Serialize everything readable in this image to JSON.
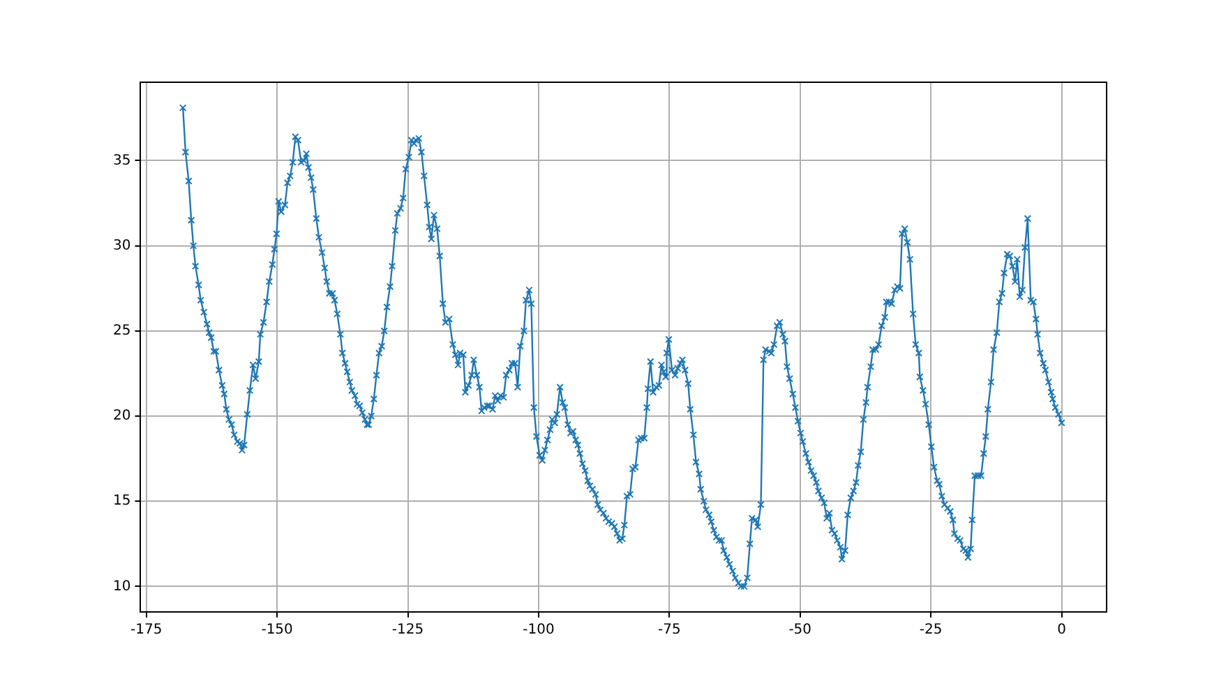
{
  "chart_data": {
    "type": "line",
    "marker": "cross",
    "line_style": "solid",
    "grid": true,
    "legend": false,
    "xlim": [
      -176.1,
      8.6
    ],
    "ylim": [
      8.5,
      39.6
    ],
    "xticks": [
      -175,
      -150,
      -125,
      -100,
      -75,
      -50,
      -25,
      0
    ],
    "yticks": [
      10,
      15,
      20,
      25,
      30,
      35
    ],
    "x": [
      -168.0,
      -167.5,
      -166.9,
      -166.4,
      -166.0,
      -165.6,
      -165.0,
      -164.6,
      -164.0,
      -163.4,
      -163.0,
      -162.6,
      -162.1,
      -161.7,
      -161.1,
      -160.5,
      -160.1,
      -159.7,
      -159.2,
      -158.7,
      -158.2,
      -157.6,
      -157.1,
      -156.7,
      -156.3,
      -155.7,
      -155.2,
      -154.6,
      -154.1,
      -153.5,
      -153.2,
      -152.6,
      -152.0,
      -151.5,
      -150.9,
      -150.5,
      -150.1,
      -149.7,
      -149.2,
      -148.5,
      -148.0,
      -147.5,
      -147.0,
      -146.5,
      -146.0,
      -145.4,
      -144.9,
      -144.4,
      -144.0,
      -143.5,
      -143.1,
      -142.5,
      -142.0,
      -141.4,
      -140.9,
      -140.5,
      -140.0,
      -139.4,
      -139.0,
      -138.5,
      -137.9,
      -137.5,
      -137.0,
      -136.6,
      -136.1,
      -135.7,
      -135.1,
      -134.7,
      -134.2,
      -133.7,
      -133.2,
      -132.8,
      -132.5,
      -132.0,
      -131.5,
      -131.0,
      -130.5,
      -130.0,
      -129.5,
      -129.0,
      -128.4,
      -128.0,
      -127.4,
      -127.0,
      -126.4,
      -125.9,
      -125.4,
      -124.8,
      -124.3,
      -123.8,
      -123.5,
      -122.9,
      -122.4,
      -121.9,
      -121.3,
      -120.9,
      -120.5,
      -120.0,
      -119.4,
      -118.9,
      -118.3,
      -117.8,
      -117.1,
      -116.4,
      -115.9,
      -115.4,
      -115.0,
      -114.4,
      -114.0,
      -113.4,
      -112.8,
      -112.4,
      -111.8,
      -111.3,
      -110.9,
      -110.4,
      -109.8,
      -109.4,
      -108.8,
      -108.3,
      -107.8,
      -107.3,
      -106.7,
      -106.2,
      -105.6,
      -105.1,
      -104.5,
      -104.0,
      -103.5,
      -102.8,
      -102.4,
      -101.8,
      -101.4,
      -100.9,
      -100.4,
      -99.8,
      -99.3,
      -98.8,
      -98.3,
      -97.8,
      -97.4,
      -96.9,
      -96.5,
      -95.9,
      -95.4,
      -95.0,
      -94.4,
      -93.9,
      -93.4,
      -92.9,
      -92.5,
      -92.1,
      -91.6,
      -91.1,
      -90.6,
      -90.2,
      -89.7,
      -89.1,
      -88.7,
      -88.2,
      -87.6,
      -87.1,
      -86.6,
      -86.0,
      -85.5,
      -85.0,
      -84.5,
      -84.0,
      -83.6,
      -83.1,
      -82.5,
      -82.0,
      -81.5,
      -80.9,
      -80.4,
      -79.8,
      -79.3,
      -79.1,
      -78.6,
      -78.1,
      -77.5,
      -77.0,
      -76.5,
      -76.1,
      -75.7,
      -75.5,
      -75.1,
      -74.5,
      -73.9,
      -73.4,
      -72.9,
      -72.5,
      -72.0,
      -71.4,
      -71.0,
      -70.4,
      -69.9,
      -69.3,
      -69.0,
      -68.4,
      -68.0,
      -67.4,
      -67.0,
      -66.5,
      -66.0,
      -65.5,
      -65.0,
      -64.6,
      -64.0,
      -63.5,
      -62.9,
      -62.4,
      -61.8,
      -61.3,
      -60.7,
      -60.1,
      -59.6,
      -59.2,
      -58.5,
      -58.1,
      -57.5,
      -57.0,
      -56.6,
      -55.9,
      -55.5,
      -55.0,
      -54.4,
      -53.9,
      -53.3,
      -52.9,
      -52.5,
      -52.0,
      -51.4,
      -50.9,
      -50.4,
      -49.9,
      -49.5,
      -48.9,
      -48.4,
      -47.9,
      -47.4,
      -46.9,
      -46.5,
      -45.9,
      -45.4,
      -44.9,
      -44.4,
      -43.9,
      -43.4,
      -42.9,
      -42.3,
      -42.0,
      -41.4,
      -40.9,
      -40.3,
      -39.8,
      -39.3,
      -38.9,
      -38.4,
      -37.9,
      -37.4,
      -37.1,
      -36.5,
      -36.1,
      -35.5,
      -35.0,
      -34.4,
      -33.8,
      -33.5,
      -33.0,
      -32.5,
      -31.9,
      -31.4,
      -30.9,
      -30.5,
      -30.0,
      -29.5,
      -29.0,
      -28.4,
      -27.9,
      -27.3,
      -27.1,
      -26.5,
      -26.0,
      -25.4,
      -24.9,
      -24.4,
      -23.8,
      -23.4,
      -22.9,
      -22.4,
      -21.8,
      -21.3,
      -20.8,
      -20.5,
      -19.9,
      -19.4,
      -18.8,
      -18.3,
      -17.9,
      -17.4,
      -17.1,
      -16.6,
      -16.0,
      -15.4,
      -14.9,
      -14.5,
      -14.1,
      -13.5,
      -13.0,
      -12.4,
      -11.9,
      -11.4,
      -11.0,
      -10.4,
      -9.9,
      -9.4,
      -8.9,
      -8.5,
      -8.0,
      -7.5,
      -7.0,
      -6.5,
      -5.9,
      -5.4,
      -4.9,
      -4.6,
      -4.1,
      -3.5,
      -3.1,
      -2.5,
      -2.0,
      -1.7,
      -1.2,
      -0.6,
      0.0
    ],
    "series": [
      {
        "color": "#1f77b4",
        "values": [
          38.1,
          35.5,
          33.8,
          31.5,
          30.0,
          28.8,
          27.7,
          26.8,
          26.1,
          25.4,
          24.9,
          24.6,
          23.8,
          23.8,
          22.7,
          21.8,
          21.3,
          20.4,
          19.8,
          19.5,
          18.9,
          18.5,
          18.4,
          18.0,
          18.3,
          20.1,
          21.5,
          23.0,
          22.2,
          23.2,
          24.8,
          25.5,
          26.7,
          27.9,
          28.9,
          29.8,
          30.7,
          32.6,
          32.0,
          32.4,
          33.7,
          34.1,
          34.9,
          36.4,
          36.2,
          34.9,
          35.0,
          35.4,
          34.6,
          34.0,
          33.3,
          31.6,
          30.5,
          29.6,
          28.7,
          27.9,
          27.2,
          27.2,
          26.8,
          26.0,
          24.8,
          23.7,
          23.1,
          22.6,
          22.0,
          21.5,
          21.2,
          20.7,
          20.6,
          20.2,
          19.8,
          19.5,
          19.5,
          20.0,
          21.0,
          22.4,
          23.7,
          24.1,
          25.0,
          26.4,
          27.6,
          28.8,
          30.9,
          31.9,
          32.2,
          32.8,
          34.5,
          35.2,
          36.2,
          36.0,
          36.2,
          36.3,
          35.5,
          34.1,
          32.4,
          31.1,
          30.4,
          31.8,
          31.0,
          29.4,
          26.6,
          25.5,
          25.7,
          24.2,
          23.6,
          23.0,
          23.7,
          23.6,
          21.4,
          21.8,
          22.4,
          23.3,
          22.4,
          21.7,
          20.3,
          20.5,
          20.6,
          20.6,
          20.4,
          21.2,
          20.9,
          21.2,
          21.1,
          22.4,
          22.7,
          23.1,
          23.1,
          21.7,
          24.1,
          25.0,
          26.8,
          27.4,
          26.6,
          20.5,
          18.8,
          17.7,
          17.4,
          18.0,
          18.6,
          19.2,
          19.8,
          19.6,
          20.1,
          21.7,
          20.8,
          20.5,
          19.5,
          19.0,
          19.1,
          18.6,
          18.3,
          17.8,
          17.2,
          16.8,
          16.2,
          15.9,
          15.7,
          15.4,
          14.8,
          14.5,
          14.3,
          14.0,
          13.8,
          13.7,
          13.5,
          13.1,
          12.7,
          12.8,
          13.6,
          15.3,
          15.4,
          16.9,
          17.0,
          18.6,
          18.7,
          18.7,
          20.5,
          21.6,
          23.2,
          21.4,
          21.7,
          21.8,
          23.0,
          22.6,
          22.3,
          23.7,
          24.5,
          22.7,
          22.4,
          22.8,
          23.1,
          23.3,
          22.7,
          21.9,
          20.4,
          18.9,
          17.3,
          16.6,
          15.7,
          15.0,
          14.5,
          14.2,
          13.8,
          13.3,
          12.9,
          12.7,
          12.7,
          12.1,
          11.7,
          11.3,
          10.9,
          10.5,
          10.2,
          10.0,
          10.0,
          10.5,
          12.5,
          14.0,
          13.9,
          13.5,
          14.8,
          23.3,
          23.9,
          23.8,
          23.7,
          24.2,
          25.3,
          25.5,
          24.8,
          24.4,
          22.9,
          22.2,
          21.3,
          20.5,
          19.7,
          19.0,
          18.5,
          17.8,
          17.3,
          16.8,
          16.5,
          16.1,
          15.6,
          15.2,
          14.9,
          14.0,
          14.3,
          13.3,
          13.1,
          12.7,
          12.3,
          11.6,
          12.1,
          14.2,
          15.2,
          15.6,
          16.1,
          17.1,
          17.9,
          19.8,
          20.8,
          21.7,
          22.9,
          23.9,
          23.9,
          24.2,
          25.3,
          25.8,
          26.7,
          26.7,
          26.6,
          27.4,
          27.6,
          27.5,
          30.7,
          31.0,
          30.2,
          29.2,
          26.0,
          24.2,
          23.7,
          22.3,
          21.5,
          20.7,
          19.5,
          18.2,
          17.0,
          16.2,
          16.0,
          15.3,
          14.8,
          14.6,
          14.4,
          13.9,
          13.1,
          12.8,
          12.7,
          12.2,
          12.1,
          11.7,
          12.2,
          13.9,
          16.5,
          16.5,
          16.5,
          17.8,
          18.8,
          20.4,
          22.0,
          23.9,
          24.9,
          26.7,
          27.2,
          28.4,
          29.5,
          29.4,
          28.8,
          27.9,
          29.2,
          27.0,
          27.4,
          29.9,
          31.6,
          26.8,
          26.7,
          25.7,
          24.8,
          23.7,
          23.1,
          22.7,
          22.0,
          21.4,
          21.0,
          20.5,
          20.1,
          19.6
        ]
      }
    ]
  }
}
